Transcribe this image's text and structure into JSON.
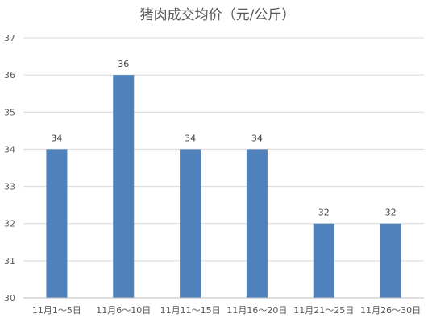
{
  "chart_data": {
    "type": "bar",
    "title": "猪肉成交均价（元/公斤）",
    "xlabel": "",
    "ylabel": "",
    "categories": [
      "11月1～5日",
      "11月6～10日",
      "11月11～15日",
      "11月16～20日",
      "11月21～25日",
      "11月26～30日"
    ],
    "values": [
      34,
      36,
      34,
      34,
      32,
      32
    ],
    "ylim": [
      30,
      37
    ],
    "yticks": [
      30,
      31,
      32,
      33,
      34,
      35,
      36,
      37
    ],
    "grid": true,
    "legend": "none",
    "data_labels": true,
    "bar_color": "#4f81bd"
  }
}
